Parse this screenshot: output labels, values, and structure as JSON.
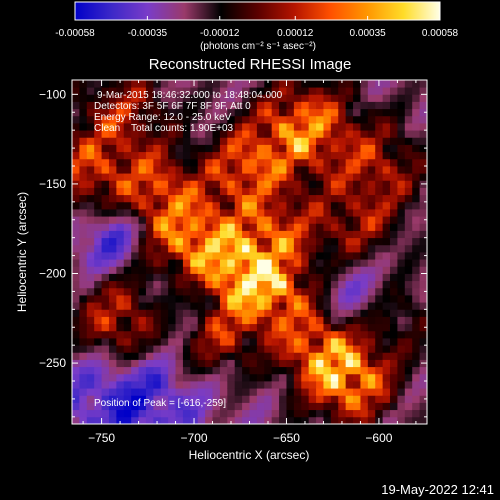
{
  "colorbar": {
    "tick_labels": [
      "-0.00058",
      "-0.00035",
      "-0.00012",
      "0.00012",
      "0.00035",
      "0.00058"
    ],
    "tick_values": [
      -0.00058,
      -0.00035,
      -0.00012,
      0.00012,
      0.00035,
      0.00058
    ],
    "range": [
      -0.00058,
      0.00058
    ],
    "units_label": "(photons cm⁻² s⁻¹ asec⁻²)"
  },
  "chart_data": {
    "type": "heatmap",
    "title": "Reconstructed RHESSI Image",
    "xlabel": "Heliocentric X (arcsec)",
    "ylabel": "Heliocentric Y (arcsec)",
    "xlim": [
      -766,
      -574
    ],
    "ylim": [
      -284,
      -92
    ],
    "x_ticks": [
      -750,
      -700,
      -650,
      -600
    ],
    "y_ticks": [
      -100,
      -150,
      -200,
      -250
    ],
    "x_tick_labels": [
      "−750",
      "−700",
      "−650",
      "−600"
    ],
    "y_tick_labels": [
      "−100",
      "−150",
      "−200",
      "−250"
    ],
    "annotations": [
      "9-Mar-2015 18:46:32.000 to 18:48:04.000",
      "Detectors: 3F 5F 6F 7F 8F 9F, Att 0",
      "Energy Range: 12.0 - 25.0 keV",
      "Clean    Total counts: 1.90E+03",
      "Position of Peak = [-616,-259]"
    ],
    "peak": {
      "x": -616,
      "y": -259
    },
    "colormap_stops": [
      "#0000c8",
      "#3c28c8",
      "#7a3cc8",
      "#9a3a6a",
      "#000000",
      "#5a0000",
      "#b41400",
      "#ff5000",
      "#ff9600",
      "#ffdc28",
      "#ffffe6"
    ]
  },
  "timestamp": "19-May-2022 12:41"
}
